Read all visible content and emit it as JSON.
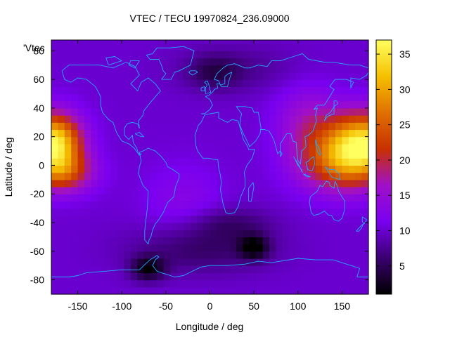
{
  "chart_data": {
    "type": "heatmap",
    "title": "VTEC / TECU 19970824_236.09000",
    "xlabel": "Longitude / deg",
    "ylabel": "Latitude / deg",
    "series_label": "'Vtec",
    "xlim": [
      -180,
      180
    ],
    "ylim": [
      -90,
      87.5
    ],
    "x_ticks": [
      -150,
      -100,
      -50,
      0,
      50,
      100,
      150
    ],
    "y_ticks": [
      -80,
      -60,
      -40,
      -20,
      0,
      20,
      40,
      60,
      80
    ],
    "colorbar": {
      "range": [
        1,
        37
      ],
      "ticks": [
        5,
        10,
        15,
        20,
        25,
        30,
        35
      ],
      "palette": [
        "#000000",
        "#3a0070",
        "#7a00f0",
        "#a010c8",
        "#c83000",
        "#e07000",
        "#f5c000",
        "#ffff60"
      ]
    },
    "base_level_tecu": 10,
    "features": [
      {
        "label": "equatorial anomaly west",
        "lon": -178,
        "lat": 16,
        "peak_tecu": 36
      },
      {
        "label": "equatorial anomaly east",
        "lon": 175,
        "lat": 16,
        "peak_tecu": 33
      },
      {
        "label": "southern minimum",
        "lon": 50,
        "lat": -57,
        "peak_tecu": 2
      },
      {
        "label": "antarctic minimum",
        "lon": -70,
        "lat": -72,
        "peak_tecu": 2
      },
      {
        "label": "arctic minimum",
        "lon": 5,
        "lat": 65,
        "peak_tecu": 5
      }
    ],
    "grid": false,
    "legend": "top-left",
    "overlay": "coastlines"
  }
}
